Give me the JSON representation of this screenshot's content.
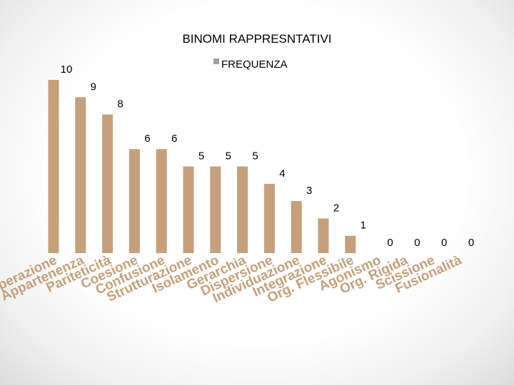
{
  "chart_data": {
    "type": "bar",
    "title": "BINOMI RAPPRESNTATIVI",
    "xlabel": "",
    "ylabel": "",
    "ylim": [
      0,
      10
    ],
    "grid": false,
    "legend": "top-right",
    "categories": [
      "Cooperazione",
      "Appartenenza",
      "Pariteticità",
      "Coesione",
      "Confusione",
      "Strutturazione",
      "Isolamento",
      "Gerarchia",
      "Dispersione",
      "Individuazione",
      "Integrazione",
      "Org. Flessibile",
      "Agonismo",
      "Org. Rigida",
      "Scissione",
      "Fusionalità"
    ],
    "series": [
      {
        "name": "FREQUENZA",
        "values": [
          10,
          9,
          8,
          6,
          6,
          5,
          5,
          5,
          4,
          3,
          2,
          1,
          0,
          0,
          0,
          0
        ]
      }
    ],
    "colors": {
      "bar": "#c5a07a",
      "label": "#c5a07a"
    }
  }
}
